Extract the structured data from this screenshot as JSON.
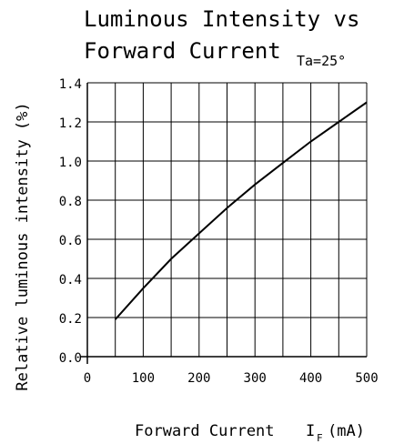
{
  "chart_data": {
    "type": "line",
    "title_line1": "Luminous Intensity vs",
    "title_line2": "Forward Current",
    "condition": "Ta=25°",
    "xlabel": "Forward Current",
    "xlabel_unit_symbol": "I",
    "xlabel_unit_sub": "F",
    "xlabel_unit": "(mA)",
    "ylabel": "Relative luminous intensity (%)",
    "xlim": [
      0,
      500
    ],
    "ylim": [
      0,
      1.4
    ],
    "x_ticks": [
      "0",
      "100",
      "200",
      "300",
      "400",
      "500"
    ],
    "y_ticks": [
      "0.0",
      "0.2",
      "0.4",
      "0.6",
      "0.8",
      "1.0",
      "1.2",
      "1.4"
    ],
    "grid": true,
    "series": [
      {
        "x": [
          50,
          100,
          150,
          200,
          250,
          300,
          350,
          400,
          450,
          500
        ],
        "y": [
          0.19,
          0.35,
          0.5,
          0.63,
          0.76,
          0.88,
          0.99,
          1.1,
          1.2,
          1.3
        ]
      }
    ]
  }
}
